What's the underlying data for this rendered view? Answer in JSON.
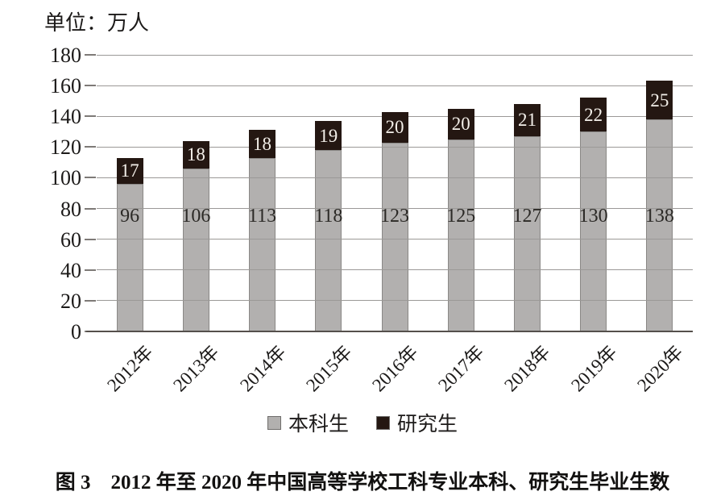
{
  "unit_label": "单位：万人",
  "caption": "图 3　2012 年至 2020 年中国高等学校工科专业本科、研究生毕业生数",
  "chart_data": {
    "type": "bar",
    "stacked": true,
    "title": "图 3 2012 年至 2020 年中国高等学校工科专业本科、研究生毕业生数",
    "unit": "单位：万人",
    "categories": [
      "2012年",
      "2013年",
      "2014年",
      "2015年",
      "2016年",
      "2017年",
      "2018年",
      "2019年",
      "2020年"
    ],
    "series": [
      {
        "name": "本科生",
        "color": "#b2b0af",
        "values": [
          96,
          106,
          113,
          118,
          123,
          125,
          127,
          130,
          138
        ]
      },
      {
        "name": "研究生",
        "color": "#241712",
        "values": [
          17,
          18,
          18,
          19,
          20,
          20,
          21,
          22,
          25
        ]
      }
    ],
    "ylim": [
      0,
      180
    ],
    "yticks": [
      0,
      20,
      40,
      60,
      80,
      100,
      120,
      140,
      160,
      180
    ],
    "grid": true,
    "legend_position": "bottom"
  },
  "colors": {
    "undergrad_bar": "#b2b0af",
    "grad_bar": "#241712",
    "gridline": "#9b9997",
    "axis": "#55504c",
    "grad_value_text": "#f3efe9",
    "undergrad_value_text": "#2b2926"
  }
}
